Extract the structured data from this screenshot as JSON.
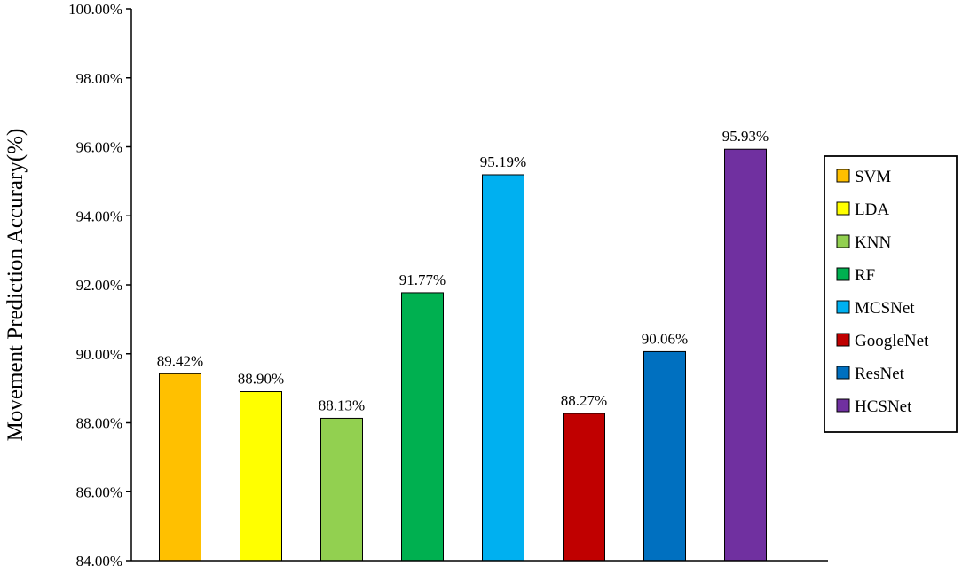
{
  "chart_data": {
    "type": "bar",
    "ylabel": "Movement Prediction Accurary(%)",
    "xlabel": "",
    "ylim": [
      84,
      100
    ],
    "yticks": [
      84,
      86,
      88,
      90,
      92,
      94,
      96,
      98,
      100
    ],
    "ytick_labels": [
      "84.00%",
      "86.00%",
      "88.00%",
      "90.00%",
      "92.00%",
      "94.00%",
      "96.00%",
      "98.00%",
      "100.00%"
    ],
    "categories": [
      "SVM",
      "LDA",
      "KNN",
      "RF",
      "MCSNet",
      "GoogleNet",
      "ResNet",
      "HCSNet"
    ],
    "values": [
      89.42,
      88.9,
      88.13,
      91.77,
      95.19,
      88.27,
      90.06,
      95.93
    ],
    "data_labels": [
      "89.42%",
      "88.90%",
      "88.13%",
      "91.77%",
      "95.19%",
      "88.27%",
      "90.06%",
      "95.93%"
    ],
    "colors": [
      "#FFC000",
      "#FFFF00",
      "#92D050",
      "#00B050",
      "#00B0F0",
      "#C00000",
      "#0070C0",
      "#7030A0"
    ],
    "legend": {
      "position": "right",
      "entries": [
        "SVM",
        "LDA",
        "KNN",
        "RF",
        "MCSNet",
        "GoogleNet",
        "ResNet",
        "HCSNet"
      ]
    },
    "grid": false
  }
}
